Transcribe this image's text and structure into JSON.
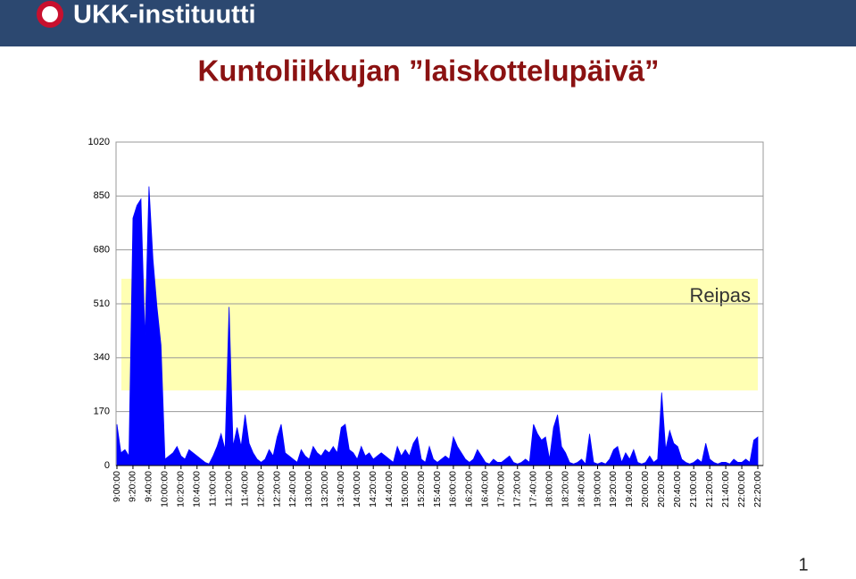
{
  "header": {
    "logo": "UKK-instituutti"
  },
  "page_number": "1",
  "chart_data": {
    "type": "area",
    "title": "Kuntoliikkujan ”laiskottelupäivä”",
    "categories": [
      "9:00:00",
      null,
      null,
      null,
      "9:20:00",
      null,
      null,
      null,
      "9:40:00",
      null,
      null,
      null,
      "10:00:00",
      null,
      null,
      null,
      "10:20:00",
      null,
      null,
      null,
      "10:40:00",
      null,
      null,
      null,
      "11:00:00",
      null,
      null,
      null,
      "11:20:00",
      null,
      null,
      null,
      "11:40:00",
      null,
      null,
      null,
      "12:00:00",
      null,
      null,
      null,
      "12:20:00",
      null,
      null,
      null,
      "12:40:00",
      null,
      null,
      null,
      "13:00:00",
      null,
      null,
      null,
      "13:20:00",
      null,
      null,
      null,
      "13:40:00",
      null,
      null,
      null,
      "14:00:00",
      null,
      null,
      null,
      "14:20:00",
      null,
      null,
      null,
      "14:40:00",
      null,
      null,
      null,
      "15:00:00",
      null,
      null,
      null,
      "15:20:00",
      null,
      null,
      null,
      "15:40:00",
      null,
      null,
      null,
      "16:00:00",
      null,
      null,
      null,
      "16:20:00",
      null,
      null,
      null,
      "16:40:00",
      null,
      null,
      null,
      "17:00:00",
      null,
      null,
      null,
      "17:20:00",
      null,
      null,
      null,
      "17:40:00",
      null,
      null,
      null,
      "18:00:00",
      null,
      null,
      null,
      "18:20:00",
      null,
      null,
      null,
      "18:40:00",
      null,
      null,
      null,
      "19:00:00",
      null,
      null,
      null,
      "19:20:00",
      null,
      null,
      null,
      "19:40:00",
      null,
      null,
      null,
      "20:00:00",
      null,
      null,
      null,
      "20:20:00",
      null,
      null,
      null,
      "20:40:00",
      null,
      null,
      null,
      "21:00:00",
      null,
      null,
      null,
      "21:20:00",
      null,
      null,
      null,
      "21:40:00",
      null,
      null,
      null,
      "22:00:00",
      null,
      null,
      null,
      "22:20:00"
    ],
    "series": [
      {
        "name": null,
        "color": "#0000ff",
        "values": [
          130,
          40,
          50,
          30,
          780,
          820,
          840,
          400,
          880,
          650,
          500,
          380,
          20,
          30,
          40,
          60,
          30,
          20,
          50,
          40,
          30,
          20,
          10,
          5,
          30,
          60,
          100,
          50,
          500,
          60,
          120,
          60,
          160,
          70,
          40,
          20,
          10,
          20,
          50,
          30,
          90,
          130,
          40,
          30,
          20,
          10,
          50,
          30,
          20,
          60,
          40,
          30,
          50,
          40,
          60,
          40,
          120,
          130,
          50,
          40,
          20,
          60,
          30,
          40,
          20,
          30,
          40,
          30,
          20,
          10,
          60,
          30,
          50,
          30,
          70,
          90,
          20,
          10,
          60,
          20,
          10,
          20,
          30,
          20,
          90,
          60,
          40,
          20,
          10,
          20,
          50,
          30,
          10,
          5,
          20,
          10,
          10,
          20,
          30,
          10,
          5,
          10,
          20,
          10,
          130,
          100,
          80,
          90,
          20,
          120,
          160,
          60,
          40,
          10,
          5,
          10,
          20,
          5,
          100,
          10,
          5,
          10,
          5,
          20,
          50,
          60,
          10,
          40,
          20,
          50,
          10,
          5,
          10,
          30,
          10,
          20,
          230,
          50,
          110,
          70,
          60,
          20,
          10,
          5,
          10,
          20,
          10,
          70,
          20,
          10,
          5,
          10,
          10,
          5,
          20,
          10,
          10,
          20,
          10,
          80,
          90
        ]
      }
    ],
    "ylim": [
      0,
      1020
    ],
    "yticks": [
      0,
      170,
      340,
      510,
      680,
      850,
      1020
    ],
    "grid": true,
    "band": {
      "label": "Reipas",
      "range": [
        237,
        589
      ],
      "color": "#ffff99"
    }
  }
}
